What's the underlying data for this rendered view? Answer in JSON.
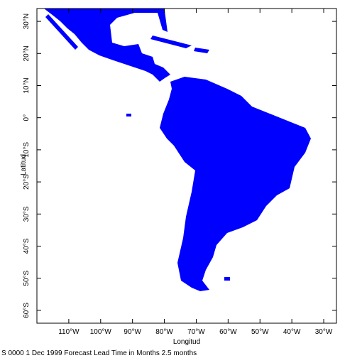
{
  "chart_data": {
    "type": "map",
    "xlabel": "Longitud",
    "ylabel": "Latitud",
    "caption": "S 0000 1 Dec 1999 Forecast Lead Time in Months 2.5 months",
    "land_color": "#0000ff",
    "xlim": [
      -120,
      -26
    ],
    "ylim": [
      -64,
      34
    ],
    "xticks": [
      {
        "value": -110,
        "label": "110°W"
      },
      {
        "value": -100,
        "label": "100°W"
      },
      {
        "value": -90,
        "label": "90°W"
      },
      {
        "value": -80,
        "label": "80°W"
      },
      {
        "value": -70,
        "label": "70°W"
      },
      {
        "value": -60,
        "label": "60°W"
      },
      {
        "value": -50,
        "label": "50°W"
      },
      {
        "value": -40,
        "label": "40°W"
      },
      {
        "value": -30,
        "label": "30°W"
      }
    ],
    "yticks": [
      {
        "value": 30,
        "label": "30°N"
      },
      {
        "value": 20,
        "label": "20°N"
      },
      {
        "value": 10,
        "label": "10°N"
      },
      {
        "value": 0,
        "label": "0°"
      },
      {
        "value": -10,
        "label": "10°S"
      },
      {
        "value": -20,
        "label": "20°S"
      },
      {
        "value": -30,
        "label": "30°S"
      },
      {
        "value": -40,
        "label": "40°S"
      },
      {
        "value": -50,
        "label": "50°S"
      },
      {
        "value": -60,
        "label": "60°S"
      }
    ]
  }
}
